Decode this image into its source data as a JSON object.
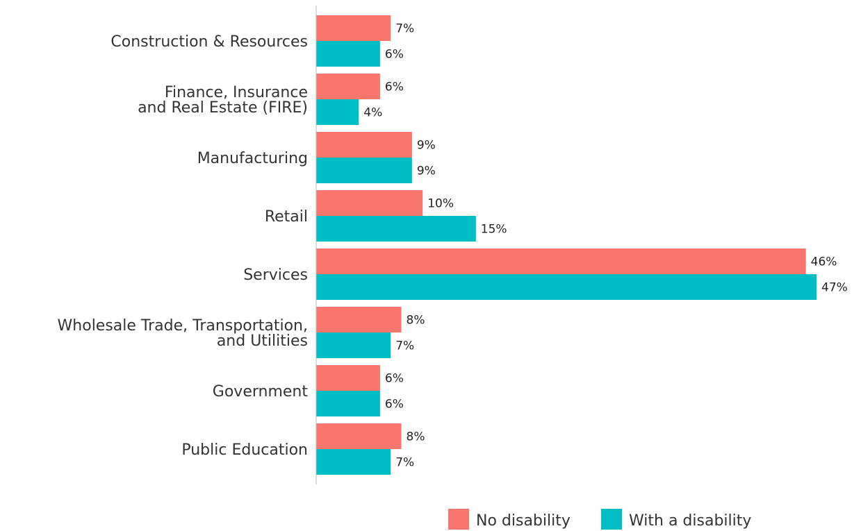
{
  "chart_data": {
    "type": "bar",
    "orientation": "horizontal",
    "title": "",
    "xlabel": "",
    "ylabel": "",
    "unit_suffix": "%",
    "grid": false,
    "legend_position": "bottom-right",
    "xlim": [
      0,
      47
    ],
    "categories": [
      [
        "Construction & Resources"
      ],
      [
        "Finance, Insurance",
        "and Real Estate (FIRE)"
      ],
      [
        "Manufacturing"
      ],
      [
        "Retail"
      ],
      [
        "Services"
      ],
      [
        "Wholesale Trade, Transportation,",
        "and Utilities"
      ],
      [
        "Government"
      ],
      [
        "Public Education"
      ]
    ],
    "series": [
      {
        "name": "No disability",
        "color": "#F8766D",
        "values": [
          7,
          6,
          9,
          10,
          46,
          8,
          6,
          8
        ]
      },
      {
        "name": "With a disability",
        "color": "#00BFC4",
        "values": [
          6,
          4,
          9,
          15,
          47,
          7,
          6,
          7
        ]
      }
    ]
  }
}
